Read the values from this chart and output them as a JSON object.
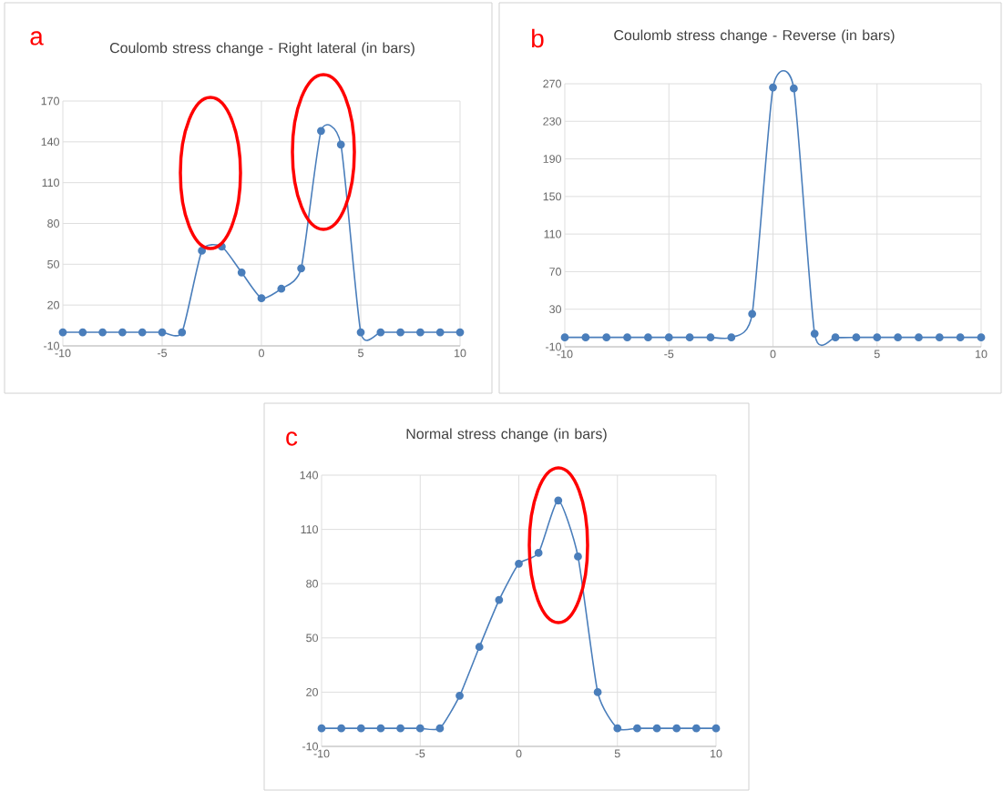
{
  "chart_data": [
    {
      "type": "line",
      "title": "Coulomb stress change - Right lateral (in bars)",
      "annotations": [
        "a"
      ],
      "x": [
        -10,
        -9,
        -8,
        -7,
        -6,
        -5,
        -4,
        -3,
        -2,
        -1,
        0,
        1,
        2,
        3,
        4,
        5,
        6,
        7,
        8,
        9,
        10
      ],
      "series": [
        {
          "color": "#4a7ebb",
          "values": [
            0,
            0,
            0,
            0,
            0,
            0,
            0,
            60,
            63,
            44,
            25,
            32,
            47,
            148,
            138,
            0,
            0,
            0,
            0,
            0,
            0
          ]
        }
      ],
      "xlim": [
        -10,
        10
      ],
      "xticks": [
        -10,
        -5,
        0,
        5,
        10
      ],
      "ylim": [
        -10,
        170
      ],
      "yticks": [
        -10,
        20,
        50,
        80,
        110,
        140,
        170
      ],
      "grid": true,
      "marker": "circle",
      "line_style": "solid"
    },
    {
      "type": "line",
      "title": "Coulomb stress change - Reverse (in bars)",
      "annotations": [
        "b"
      ],
      "x": [
        -10,
        -9,
        -8,
        -7,
        -6,
        -5,
        -4,
        -3,
        -2,
        -1,
        0,
        1,
        2,
        3,
        4,
        5,
        6,
        7,
        8,
        9,
        10
      ],
      "series": [
        {
          "color": "#4a7ebb",
          "values": [
            0,
            0,
            0,
            0,
            0,
            0,
            0,
            0,
            0,
            25,
            266,
            265,
            4,
            0,
            0,
            0,
            0,
            0,
            0,
            0,
            0
          ]
        }
      ],
      "xlim": [
        -10,
        10
      ],
      "xticks": [
        -10,
        -5,
        0,
        5,
        10
      ],
      "ylim": [
        -10,
        270
      ],
      "yticks": [
        -10,
        30,
        70,
        110,
        150,
        190,
        230,
        270
      ],
      "grid": true,
      "marker": "circle",
      "line_style": "solid"
    },
    {
      "type": "line",
      "title": "Normal stress change (in bars)",
      "annotations": [
        "c"
      ],
      "x": [
        -10,
        -9,
        -8,
        -7,
        -6,
        -5,
        -4,
        -3,
        -2,
        -1,
        0,
        1,
        2,
        3,
        4,
        5,
        6,
        7,
        8,
        9,
        10
      ],
      "series": [
        {
          "color": "#4a7ebb",
          "values": [
            0,
            0,
            0,
            0,
            0,
            0,
            0,
            18,
            45,
            71,
            91,
            97,
            126,
            95,
            20,
            0,
            0,
            0,
            0,
            0,
            0
          ]
        }
      ],
      "xlim": [
        -10,
        10
      ],
      "xticks": [
        -10,
        -5,
        0,
        5,
        10
      ],
      "ylim": [
        -10,
        140
      ],
      "yticks": [
        -10,
        20,
        50,
        80,
        110,
        140
      ],
      "grid": true,
      "marker": "circle",
      "line_style": "solid"
    }
  ]
}
